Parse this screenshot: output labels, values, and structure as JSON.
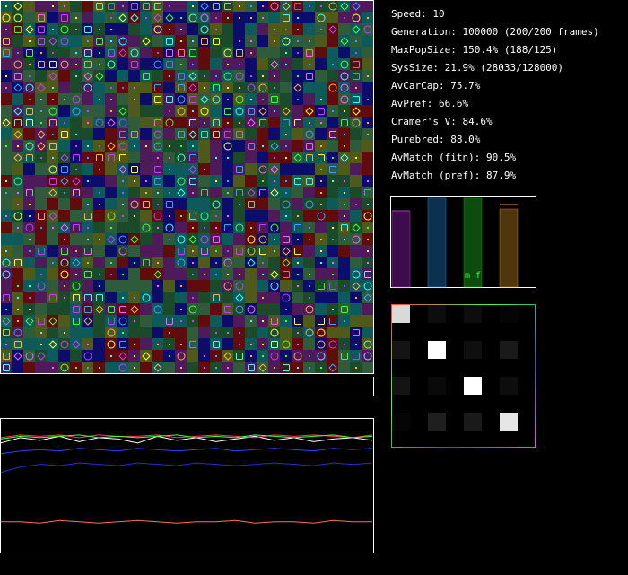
{
  "stats": [
    "Speed: 10",
    "Generation: 100000 (200/200 frames)",
    "MaxPopSize: 150.4% (188/125)",
    "SysSize: 21.9% (28033/128000)",
    "AvCarCap: 75.7%",
    "AvPref: 66.6%",
    "Cramer's V: 84.6%",
    "Purebred: 88.0%",
    "AvMatch (fitn): 90.5%",
    "AvMatch (pref): 87.9%"
  ],
  "bars": {
    "ylim": [
      0,
      100
    ],
    "values": [
      85,
      99,
      99,
      87
    ],
    "colors": [
      "#3c0c4c",
      "#0c3050",
      "#0c4c0c",
      "#50360c"
    ],
    "edge_colors": [
      "#a040c0",
      "#2080c0",
      "#20a020",
      "#c08020"
    ],
    "markers": [
      85,
      92
    ],
    "marker_colors": [
      "#a040c0",
      "#ff9020"
    ],
    "label": "m f"
  },
  "heatmap": {
    "matrix": [
      [
        0.85,
        0.05,
        0.05,
        0.02
      ],
      [
        0.08,
        1.0,
        0.06,
        0.1
      ],
      [
        0.08,
        0.04,
        1.0,
        0.05
      ],
      [
        0.02,
        0.12,
        0.1,
        0.9
      ]
    ]
  },
  "plot": {
    "ylim": [
      0,
      100
    ],
    "series": [
      {
        "color": "#ffffff",
        "values": [
          82,
          86,
          84,
          87,
          83,
          86,
          85,
          82,
          87,
          84,
          86,
          83,
          85,
          87,
          84,
          86,
          83,
          85,
          86,
          84
        ]
      },
      {
        "color": "#ff4040",
        "values": [
          86,
          88,
          87,
          88,
          86,
          88,
          87,
          87,
          88,
          86,
          87,
          88,
          87,
          86,
          88,
          87,
          88,
          87,
          86,
          88
        ]
      },
      {
        "color": "#40ff40",
        "values": [
          85,
          87,
          86,
          87,
          88,
          86,
          87,
          86,
          87,
          88,
          86,
          87,
          86,
          88,
          87,
          86,
          87,
          88,
          86,
          87
        ]
      },
      {
        "color": "#3040ff",
        "values": [
          74,
          76,
          77,
          76,
          78,
          77,
          76,
          78,
          77,
          76,
          77,
          78,
          76,
          77,
          78,
          77,
          76,
          78,
          77,
          78
        ]
      },
      {
        "color": "#2030d0",
        "values": [
          60,
          64,
          66,
          65,
          67,
          66,
          65,
          67,
          66,
          65,
          67,
          66,
          65,
          66,
          67,
          66,
          65,
          67,
          66,
          67
        ]
      },
      {
        "color": "#ff7050",
        "values": [
          23,
          23,
          22,
          24,
          23,
          22,
          23,
          24,
          23,
          22,
          23,
          23,
          24,
          22,
          23,
          23,
          22,
          24,
          23,
          23
        ]
      }
    ]
  }
}
